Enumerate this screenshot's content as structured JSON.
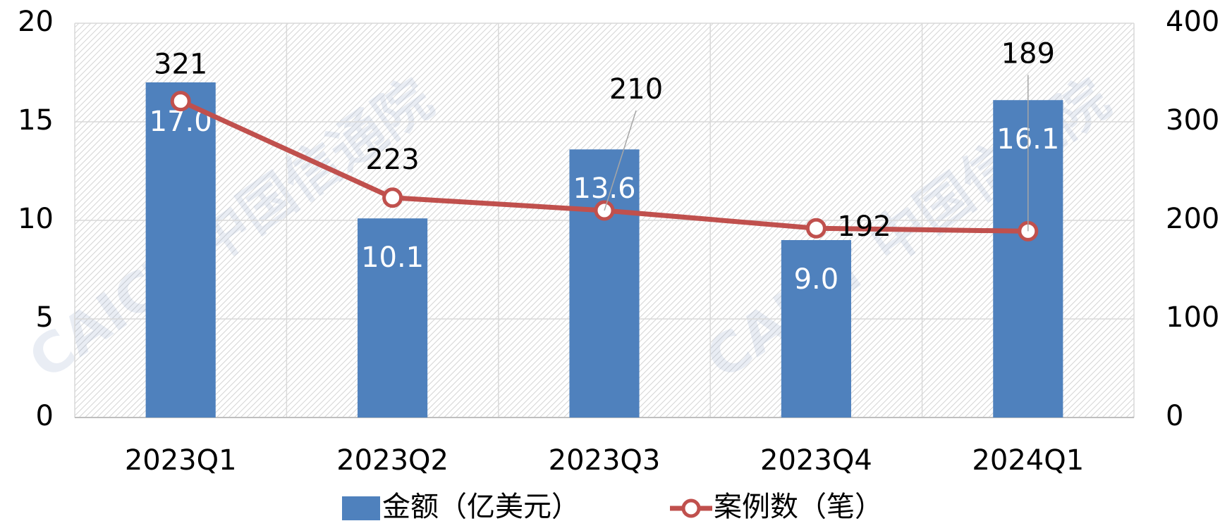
{
  "chart_data": {
    "type": "combo",
    "watermark": "CAICT 中国信通院",
    "categories": [
      "2023Q1",
      "2023Q2",
      "2023Q3",
      "2023Q4",
      "2024Q1"
    ],
    "series": [
      {
        "name": "金额（亿美元）",
        "type": "bar",
        "color": "#4f81bd",
        "values": [
          17.0,
          10.1,
          13.6,
          9.0,
          16.1
        ],
        "value_labels": [
          "17.0",
          "10.1",
          "13.6",
          "9.0",
          "16.1"
        ]
      },
      {
        "name": "案例数（笔）",
        "type": "line",
        "axis": "y2",
        "color": "#c0504d",
        "values": [
          321,
          223,
          210,
          192,
          189
        ]
      }
    ],
    "ylim": [
      0,
      20
    ],
    "yticks": [
      0,
      5,
      10,
      15,
      20
    ],
    "y2lim": [
      0,
      400
    ],
    "y2ticks": [
      0,
      100,
      200,
      300,
      400
    ],
    "grid": true
  }
}
